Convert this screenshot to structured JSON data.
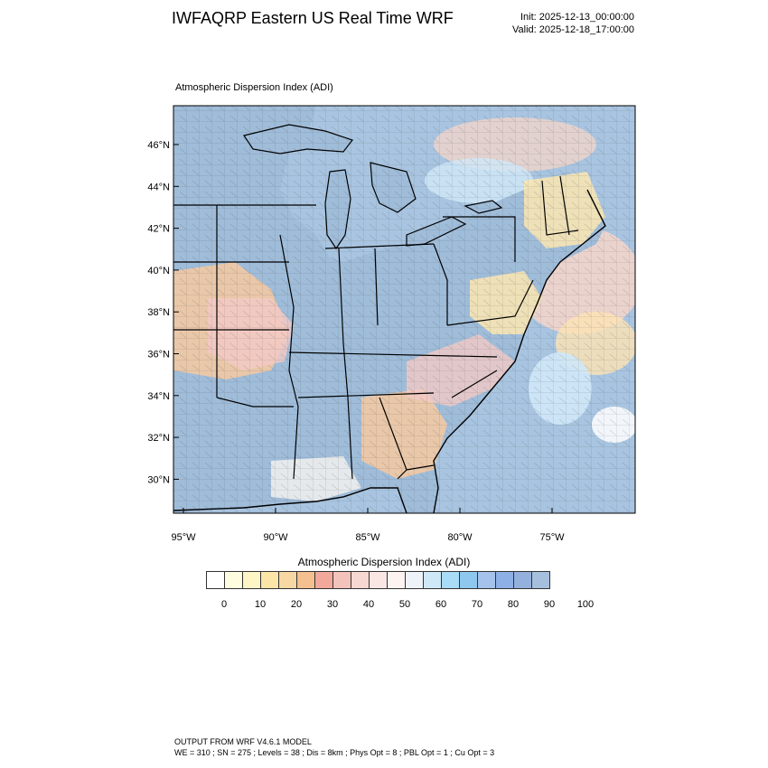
{
  "header": {
    "title": "IWFAQRP Eastern US Real Time WRF",
    "init": "Init: 2025-12-13_00:00:00",
    "valid": "Valid: 2025-12-18_17:00:00"
  },
  "map": {
    "field_title": "Atmospheric Dispersion Index   (ADI)",
    "lat_labels": [
      "46°N",
      "44°N",
      "42°N",
      "40°N",
      "38°N",
      "36°N",
      "34°N",
      "32°N",
      "30°N"
    ],
    "lon_labels": [
      "95°W",
      "90°W",
      "85°W",
      "80°W",
      "75°W"
    ],
    "colors": {
      "water": "#a8c4e0",
      "land_high": "#9fbcd9",
      "land_low_orange": "#f6c9a0",
      "land_low_pink": "#f3c9c6",
      "land_mid_yellow": "#fbe6b0",
      "land_white": "#f6f4f0",
      "state_border": "#000000",
      "county_border": "#333333"
    }
  },
  "colorbar": {
    "title": "Atmospheric Dispersion Index  (ADI)",
    "labels": [
      "0",
      "10",
      "20",
      "30",
      "40",
      "50",
      "60",
      "70",
      "80",
      "90",
      "100"
    ],
    "colors": [
      "#ffffff",
      "#fefde0",
      "#fdf5c6",
      "#fbe6a8",
      "#f7d7a3",
      "#f4c08f",
      "#f2a99c",
      "#f3c2bb",
      "#f7d7d2",
      "#fae7e4",
      "#fdf4f2",
      "#eef3fa",
      "#cfe8f8",
      "#a9dcf6",
      "#8ec8ef",
      "#a4c2ea",
      "#8db0e6",
      "#94b0dc",
      "#a6bfdc"
    ]
  },
  "footer": {
    "line1": "OUTPUT FROM WRF V4.6.1 MODEL",
    "line2": "WE = 310 ; SN = 275 ; Levels = 38 ; Dis = 8km ; Phys Opt = 8 ; PBL Opt = 1 ; Cu Opt = 3"
  }
}
